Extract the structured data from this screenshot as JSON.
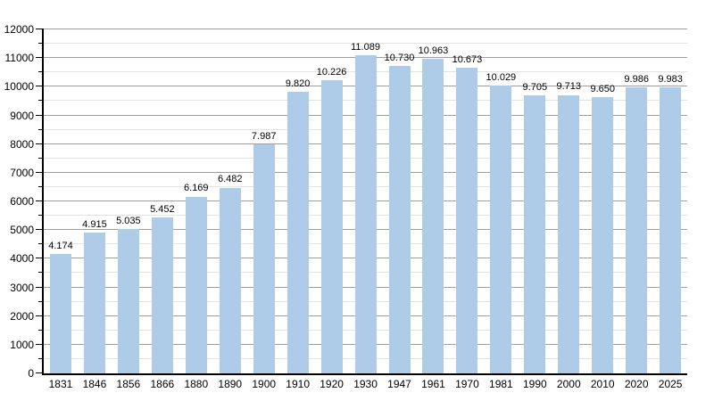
{
  "chart_data": {
    "type": "bar",
    "title": "",
    "xlabel": "",
    "ylabel": "",
    "categories": [
      "1831",
      "1846",
      "1856",
      "1866",
      "1880",
      "1890",
      "1900",
      "1910",
      "1920",
      "1930",
      "1947",
      "1961",
      "1970",
      "1981",
      "1990",
      "2000",
      "2010",
      "2020",
      "2025"
    ],
    "values": [
      4174,
      4915,
      5035,
      5452,
      6169,
      6482,
      7987,
      9820,
      10226,
      11089,
      10730,
      10963,
      10673,
      10029,
      9705,
      9713,
      9650,
      9986,
      9983
    ],
    "bar_labels": [
      "4.174",
      "4.915",
      "5.035",
      "5.452",
      "6.169",
      "6.482",
      "7.987",
      "9.820",
      "10.226",
      "11.089",
      "10.730",
      "10.963",
      "10.673",
      "10.029",
      "9.705",
      "9.713",
      "9.650",
      "9.986",
      "9.983"
    ],
    "ylim": [
      0,
      12000
    ],
    "y_major_step": 1000,
    "y_minor_step": 500,
    "y_tick_labels": [
      "0",
      "1000",
      "2000",
      "3000",
      "4000",
      "5000",
      "6000",
      "7000",
      "8000",
      "9000",
      "10000",
      "11000",
      "12000"
    ],
    "grid": "on",
    "legend": "none",
    "colors": {
      "bar": "#aecbe8",
      "grid_major": "#9f9f9f",
      "grid_minor": "#e2e2e2",
      "axis": "#000000",
      "text": "#000000",
      "background": "#ffffff"
    }
  }
}
